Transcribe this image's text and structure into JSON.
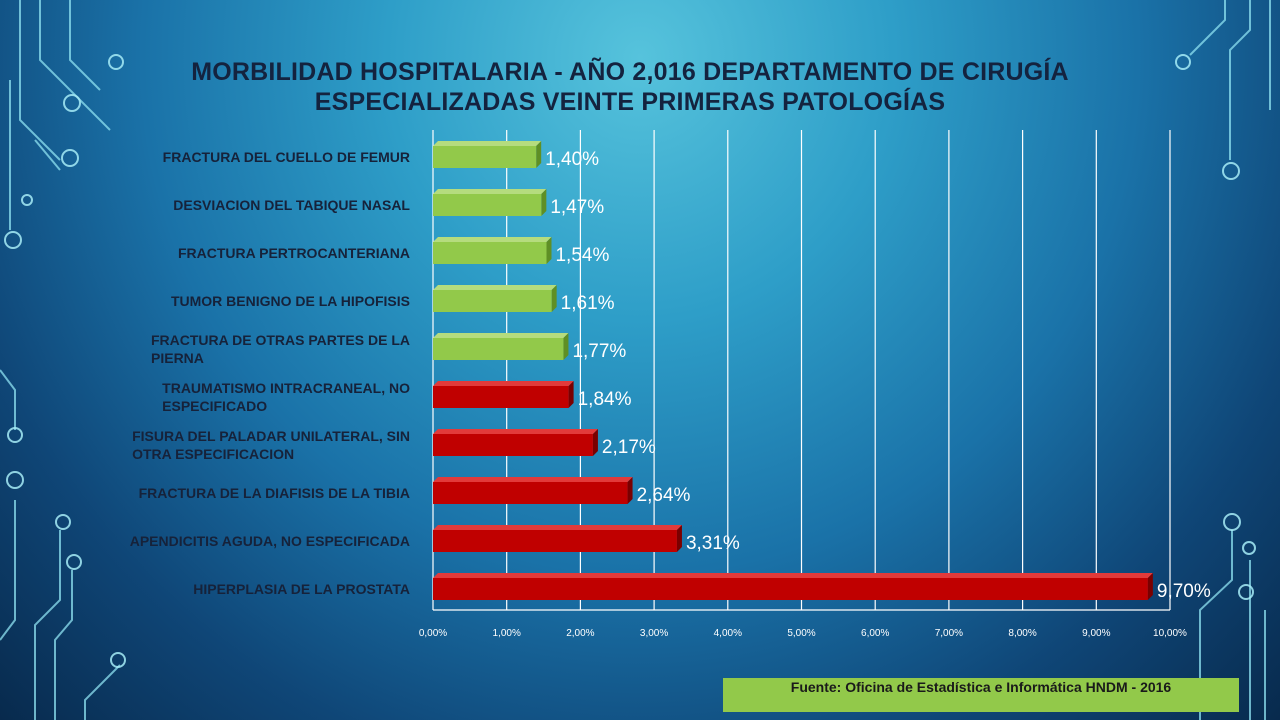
{
  "slide": {
    "title_line1": "MORBILIDAD HOSPITALARIA - AÑO 2,016 DEPARTAMENTO DE CIRUGÍA",
    "title_line2": "ESPECIALIZADAS VEINTE PRIMERAS PATOLOGÍAS",
    "source": "Fuente: Oficina de Estadística e Informática HNDM - 2016"
  },
  "colors": {
    "green_bar": "#92c94a",
    "red_bar": "#c00000",
    "label_text": "#16223a",
    "value_text": "#ffffff",
    "gridline": "#ffffff"
  },
  "chart_data": {
    "type": "bar",
    "orientation": "horizontal",
    "categories": [
      "FRACTURA DEL CUELLO DE FEMUR",
      "DESVIACION DEL TABIQUE NASAL",
      "FRACTURA PERTROCANTERIANA",
      "TUMOR BENIGNO DE LA HIPOFISIS",
      "FRACTURA DE OTRAS PARTES DE LA PIERNA",
      "TRAUMATISMO INTRACRANEAL, NO ESPECIFICADO",
      "FISURA DEL PALADAR UNILATERAL, SIN OTRA ESPECIFICACION",
      "FRACTURA DE LA DIAFISIS DE LA TIBIA",
      "APENDICITIS AGUDA, NO ESPECIFICADA",
      "HIPERPLASIA DE LA PROSTATA"
    ],
    "category_lines": [
      [
        "FRACTURA DEL CUELLO DE FEMUR"
      ],
      [
        "DESVIACION DEL TABIQUE NASAL"
      ],
      [
        "FRACTURA PERTROCANTERIANA"
      ],
      [
        "TUMOR BENIGNO DE LA HIPOFISIS"
      ],
      [
        "FRACTURA DE OTRAS PARTES DE LA",
        "PIERNA"
      ],
      [
        "TRAUMATISMO INTRACRANEAL, NO",
        "ESPECIFICADO"
      ],
      [
        "FISURA DEL PALADAR UNILATERAL, SIN",
        "OTRA ESPECIFICACION"
      ],
      [
        "FRACTURA DE LA DIAFISIS DE LA TIBIA"
      ],
      [
        "APENDICITIS AGUDA, NO ESPECIFICADA"
      ],
      [
        "HIPERPLASIA DE LA PROSTATA"
      ]
    ],
    "values": [
      1.4,
      1.47,
      1.54,
      1.61,
      1.77,
      1.84,
      2.17,
      2.64,
      3.31,
      9.7
    ],
    "value_labels": [
      "1,40%",
      "1,47%",
      "1,54%",
      "1,61%",
      "1,77%",
      "1,84%",
      "2,17%",
      "2,64%",
      "3,31%",
      "9,70%"
    ],
    "bar_colors": [
      "green",
      "green",
      "green",
      "green",
      "green",
      "red",
      "red",
      "red",
      "red",
      "red"
    ],
    "xlim": [
      0,
      10
    ],
    "xticks": [
      "0,00%",
      "1,00%",
      "2,00%",
      "3,00%",
      "4,00%",
      "5,00%",
      "6,00%",
      "7,00%",
      "8,00%",
      "9,00%",
      "10,00%"
    ],
    "grid": true,
    "legend": "none"
  }
}
